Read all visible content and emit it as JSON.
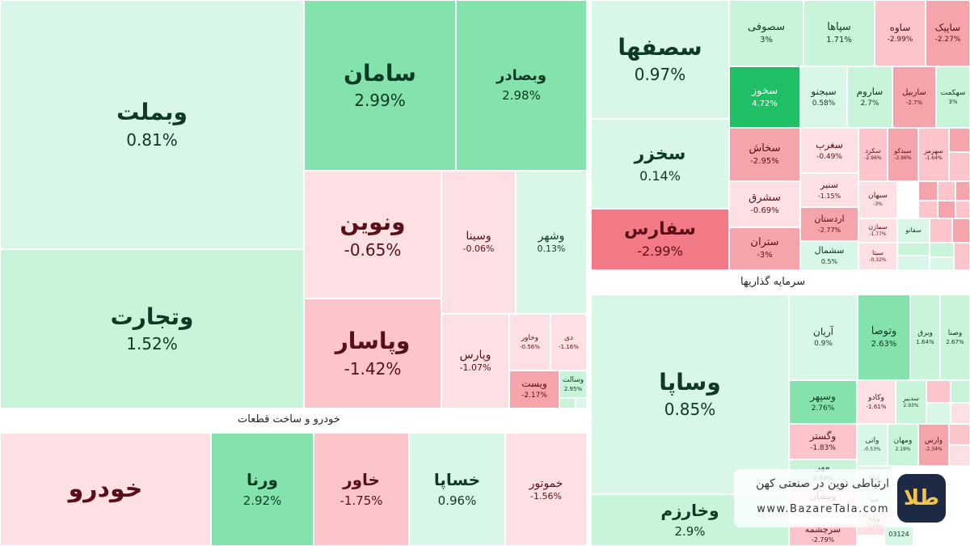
{
  "sectors": [
    {
      "label": "خودرو و ساخت قطعات"
    },
    {
      "label": "سرمایه گذاریها"
    }
  ],
  "watermark": {
    "tagline": "ارتباطی نوین در صنعتی کهن",
    "url": "www.BazareTala.com",
    "logo_glyph": "طلا"
  },
  "chart_data": {
    "type": "heatmap",
    "colors": {
      "strong_green": "#1fbf65",
      "mid_green": "#84e3ad",
      "light_green": "#c8f4da",
      "pale_green": "#d9f7e6",
      "pale_red": "#fde0e3",
      "light_red": "#fbc5cb",
      "mid_red": "#f6a4ab",
      "strong_red": "#f27a86"
    },
    "tiles": [
      {
        "name": "وبملت",
        "value": "0.81%"
      },
      {
        "name": "وتجارت",
        "value": "1.52%"
      },
      {
        "name": "سامان",
        "value": "2.99%"
      },
      {
        "name": "وبصادر",
        "value": "2.98%"
      },
      {
        "name": "ونوین",
        "value": "-0.65%"
      },
      {
        "name": "وسینا",
        "value": "-0.06%"
      },
      {
        "name": "وشهر",
        "value": "0.13%"
      },
      {
        "name": "وپاسار",
        "value": "-1.42%"
      },
      {
        "name": "وپارس",
        "value": "-1.07%"
      },
      {
        "name": "وخاور",
        "value": "-0.56%"
      },
      {
        "name": "دی",
        "value": "-1.16%"
      },
      {
        "name": "ویست",
        "value": "-2.17%"
      },
      {
        "name": "وسالت",
        "value": "2.95%"
      },
      {
        "name": "خودرو",
        "value": ""
      },
      {
        "name": "ورنا",
        "value": "2.92%"
      },
      {
        "name": "خاور",
        "value": "-1.75%"
      },
      {
        "name": "خساپا",
        "value": "0.96%"
      },
      {
        "name": "خموتور",
        "value": "-1.56%"
      },
      {
        "name": "سصفها",
        "value": "0.97%"
      },
      {
        "name": "سخزر",
        "value": "0.14%"
      },
      {
        "name": "سفارس",
        "value": "-2.99%"
      },
      {
        "name": "سصوفی",
        "value": "3%"
      },
      {
        "name": "سپاها",
        "value": "1.71%"
      },
      {
        "name": "ساوه",
        "value": "-2.99%"
      },
      {
        "name": "ساپیک",
        "value": "-2.27%"
      },
      {
        "name": "سخوز",
        "value": "4.72%"
      },
      {
        "name": "سبجنو",
        "value": "0.58%"
      },
      {
        "name": "ساروم",
        "value": "2.7%"
      },
      {
        "name": "ساربیل",
        "value": "-2.7%"
      },
      {
        "name": "سهکمت",
        "value": "3%"
      },
      {
        "name": "سخاش",
        "value": "-2.95%"
      },
      {
        "name": "سغرب",
        "value": "-0.49%"
      },
      {
        "name": "سکرد",
        "value": "-2.96%"
      },
      {
        "name": "سیدکو",
        "value": "-2.96%"
      },
      {
        "name": "سهرمز",
        "value": "-1.64%"
      },
      {
        "name": "سنیر",
        "value": "-1.15%"
      },
      {
        "name": "سشرق",
        "value": "-0.69%"
      },
      {
        "name": "سبهان",
        "value": "-3%"
      },
      {
        "name": "اردستان",
        "value": "-2.77%"
      },
      {
        "name": "سمازن",
        "value": "-1.77%"
      },
      {
        "name": "سفانو",
        "value": ""
      },
      {
        "name": "ستران",
        "value": "-3%"
      },
      {
        "name": "سشمال",
        "value": "0.5%"
      },
      {
        "name": "سیتا",
        "value": "-0.32%"
      },
      {
        "name": "وساپا",
        "value": "0.85%"
      },
      {
        "name": "وخارزم",
        "value": "2.9%"
      },
      {
        "name": "آریان",
        "value": "0.9%"
      },
      {
        "name": "وتوصا",
        "value": "2.63%"
      },
      {
        "name": "وبرق",
        "value": "1.64%"
      },
      {
        "name": "وصنا",
        "value": "2.67%"
      },
      {
        "name": "وسپهر",
        "value": "2.76%"
      },
      {
        "name": "وکادو",
        "value": "-1.61%"
      },
      {
        "name": "سدبیر",
        "value": "2.93%"
      },
      {
        "name": "وگستر",
        "value": "-1.83%"
      },
      {
        "name": "واتی",
        "value": "-0.53%"
      },
      {
        "name": "ومهان",
        "value": "2.19%"
      },
      {
        "name": "وارس",
        "value": "-2.34%"
      },
      {
        "name": "مهر",
        "value": "0.98%"
      },
      {
        "name": "ومشان",
        "value": ""
      },
      {
        "name": "کیانا",
        "value": ""
      },
      {
        "name": "صبا",
        "value": ""
      },
      {
        "name": "وپایا",
        "value": "-1.94%"
      },
      {
        "name": "سرچشمه",
        "value": "-2.79%"
      },
      {
        "name": "03124",
        "value": ""
      }
    ]
  }
}
